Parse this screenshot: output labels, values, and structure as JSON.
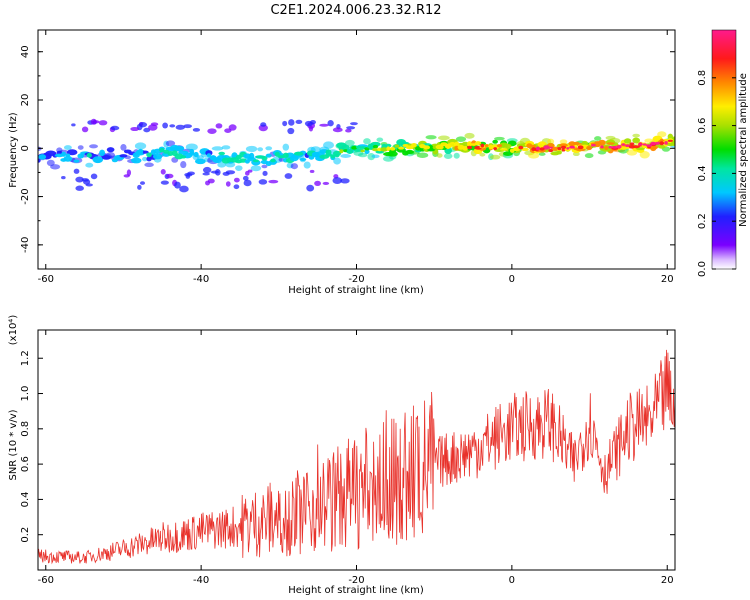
{
  "title": "C2E1.2024.006.23.32.R12",
  "chart_data": [
    {
      "type": "heatmap",
      "title": "C2E1.2024.006.23.32.R12",
      "xlabel": "Height of straight line (km)",
      "ylabel": "Frequency (Hz)",
      "xlim": [
        -61,
        21
      ],
      "ylim": [
        -50,
        49
      ],
      "x_ticks": [
        -60,
        -40,
        -20,
        0,
        20
      ],
      "y_ticks": [
        -40,
        -20,
        0,
        20,
        40
      ],
      "colorbar": {
        "label": "Normalized spectral amplitude",
        "range": [
          0,
          1
        ],
        "ticks": [
          "0.0",
          "0.2",
          "0.4",
          "0.6",
          "0.8"
        ],
        "tick_values": [
          0.0,
          0.2,
          0.4,
          0.6,
          0.8
        ]
      },
      "ridge": {
        "x": [
          -61,
          -55,
          -50,
          -45,
          -40,
          -35,
          -30,
          -25,
          -20,
          -15,
          -10,
          -5,
          0,
          5,
          10,
          15,
          20,
          21
        ],
        "freq": [
          -4,
          -3,
          -3,
          -2,
          -3,
          -4,
          -4,
          -3,
          0,
          0,
          1,
          1,
          0,
          0,
          1,
          1,
          2,
          3
        ],
        "amplitude": [
          0.25,
          0.3,
          0.25,
          0.35,
          0.3,
          0.45,
          0.35,
          0.35,
          0.55,
          0.6,
          0.65,
          0.85,
          0.75,
          0.95,
          0.85,
          0.95,
          0.9,
          0.6
        ]
      },
      "grid": false
    },
    {
      "type": "line",
      "xlabel": "Height of straight line (km)",
      "ylabel": "SNR (10 * v/v)",
      "multiplier": "(x10⁴)",
      "xlim": [
        -61,
        21
      ],
      "ylim": [
        0,
        1.36
      ],
      "x_ticks": [
        -60,
        -40,
        -20,
        0,
        20
      ],
      "y_ticks": [
        "0.2",
        "0.4",
        "0.6",
        "0.8",
        "1.0",
        "1.2"
      ],
      "y_tick_values": [
        0.2,
        0.4,
        0.6,
        0.8,
        1.0,
        1.2
      ],
      "color": "#e8322b",
      "trend": {
        "x": [
          -61,
          -55,
          -50,
          -45,
          -40,
          -35,
          -30,
          -25,
          -20,
          -15,
          -10,
          -5,
          0,
          5,
          8,
          10,
          12,
          15,
          18,
          20,
          21
        ],
        "y": [
          0.08,
          0.07,
          0.12,
          0.18,
          0.22,
          0.25,
          0.3,
          0.36,
          0.45,
          0.5,
          0.6,
          0.68,
          0.8,
          0.84,
          0.6,
          0.85,
          0.55,
          0.8,
          0.85,
          1.02,
          0.9
        ]
      },
      "grid": false
    }
  ]
}
